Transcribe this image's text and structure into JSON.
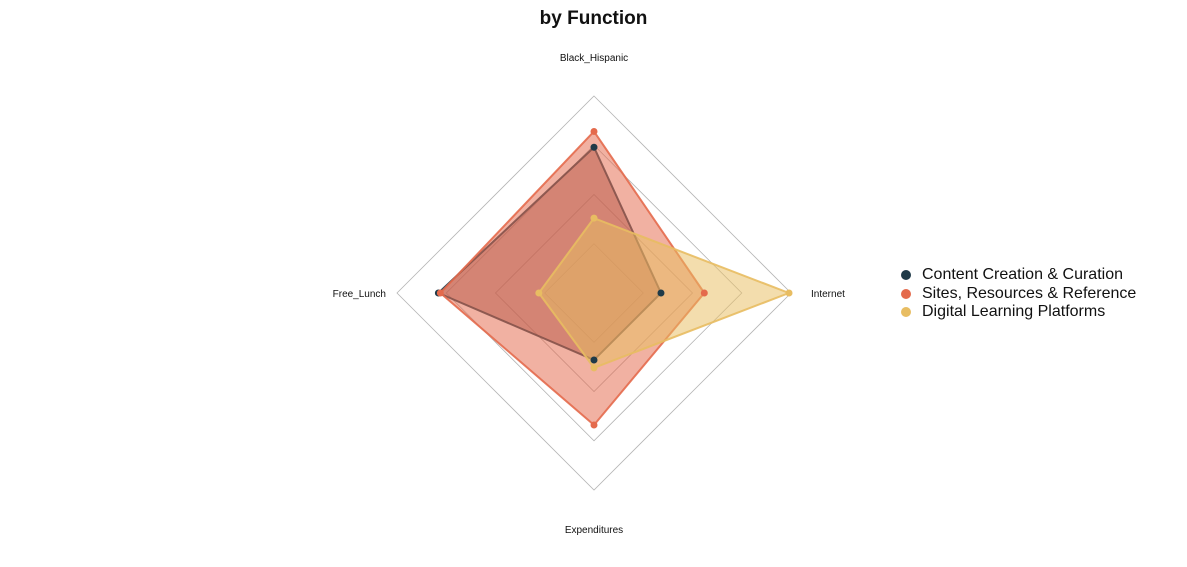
{
  "chart_data": {
    "type": "radar",
    "title": "by Function",
    "axes": [
      "Black_Hispanic",
      "Internet",
      "Expenditures",
      "Free_Lunch"
    ],
    "range": [
      0,
      1
    ],
    "grid_levels": 4,
    "legend_position": "right",
    "series": [
      {
        "name": "Content Creation & Curation",
        "color": "#1f3a48",
        "fill": "#8a4a48",
        "values": [
          0.74,
          0.34,
          0.34,
          0.79
        ]
      },
      {
        "name": "Sites, Resources & Reference",
        "color": "#e46a4c",
        "fill": "#e46a4c",
        "values": [
          0.82,
          0.56,
          0.67,
          0.78
        ]
      },
      {
        "name": "Digital Learning Platforms",
        "color": "#e8bd62",
        "fill": "#e8bd62",
        "values": [
          0.38,
          0.99,
          0.38,
          0.28
        ]
      }
    ]
  }
}
